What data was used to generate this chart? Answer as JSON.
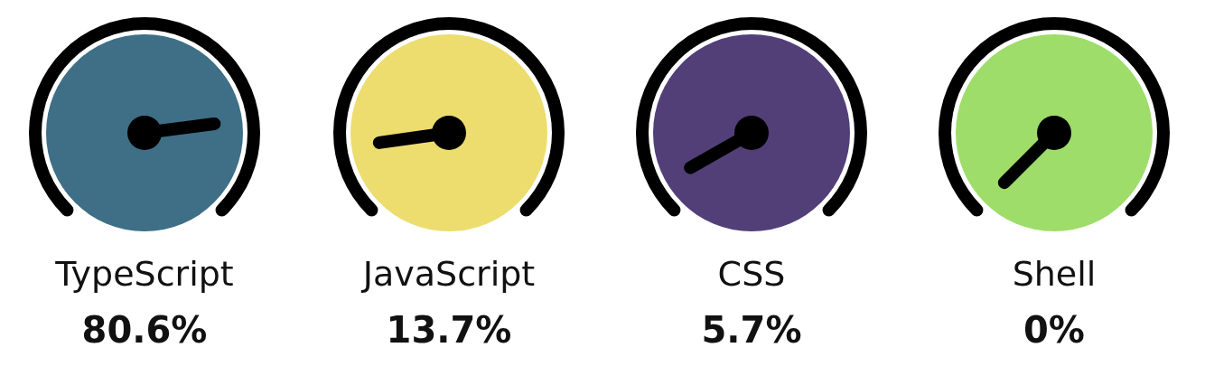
{
  "chart_data": [
    {
      "type": "other",
      "categories": [
        "TypeScript"
      ],
      "values": [
        80.6
      ],
      "value_labels": [
        "80.6%"
      ],
      "colors": [
        "#3e6f86"
      ]
    },
    {
      "type": "other",
      "categories": [
        "JavaScript"
      ],
      "values": [
        13.7
      ],
      "value_labels": [
        "13.7%"
      ],
      "colors": [
        "#ecdd6e"
      ]
    },
    {
      "type": "other",
      "categories": [
        "CSS"
      ],
      "values": [
        5.7
      ],
      "value_labels": [
        "5.7%"
      ],
      "colors": [
        "#523f78"
      ]
    },
    {
      "type": "other",
      "categories": [
        "Shell"
      ],
      "values": [
        0
      ],
      "value_labels": [
        "0%"
      ],
      "colors": [
        "#9edd6a"
      ]
    }
  ]
}
